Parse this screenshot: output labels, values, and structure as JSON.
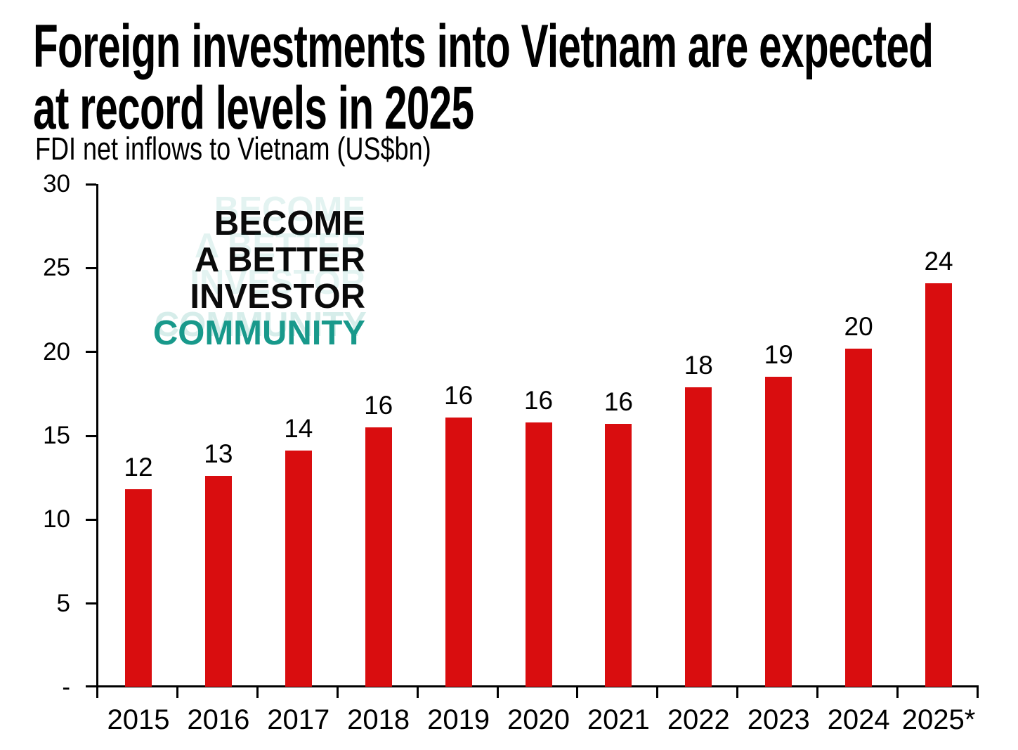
{
  "title": {
    "line1": "Foreign investments into Vietnam are expected",
    "line2": "at record levels in 2025"
  },
  "subtitle": "FDI net inflows to Vietnam (US$bn)",
  "watermark": {
    "line1": "BECOME",
    "line2": "A BETTER",
    "line3": "INVESTOR",
    "line4": "COMMUNITY",
    "accent_color": "#18998B"
  },
  "chart_data": {
    "type": "bar",
    "title": "FDI net inflows to Vietnam (US$bn)",
    "categories": [
      "2015",
      "2016",
      "2017",
      "2018",
      "2019",
      "2020",
      "2021",
      "2022",
      "2023",
      "2024",
      "2025*"
    ],
    "values": [
      11.8,
      12.6,
      14.1,
      15.5,
      16.1,
      15.8,
      15.7,
      17.9,
      18.5,
      20.2,
      24.1
    ],
    "bar_labels": [
      "12",
      "13",
      "14",
      "16",
      "16",
      "16",
      "16",
      "18",
      "19",
      "20",
      "24"
    ],
    "xlabel": "",
    "ylabel": "",
    "ylim": [
      0,
      30
    ],
    "yticks": [
      {
        "label": "30",
        "value": 30
      },
      {
        "label": "25",
        "value": 25
      },
      {
        "label": "20",
        "value": 20
      },
      {
        "label": "15",
        "value": 15
      },
      {
        "label": "10",
        "value": 10
      },
      {
        "label": "5",
        "value": 5
      },
      {
        "label": "-",
        "value": 0
      }
    ],
    "bar_color": "#D90D0F",
    "grid": false,
    "legend": null
  }
}
